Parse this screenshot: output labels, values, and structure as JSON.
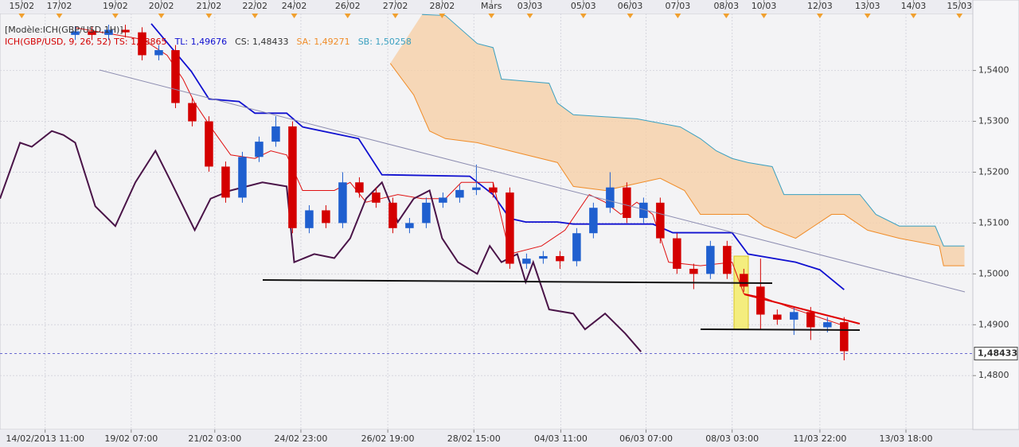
{
  "chart_data": {
    "type": "candlestick",
    "legend": [
      {
        "text": "[Modèle:ICH(GBP/USD,1H)]",
        "color": "#333333"
      },
      {
        "text": "ICH(GBP/USD, 9, 26, 52) TS: 1,48865",
        "color": "#d40000"
      },
      {
        "text": "TL: 1,49676",
        "color": "#1010d0"
      },
      {
        "text": "CS: 1,48433",
        "color": "#333333"
      },
      {
        "text": "SA: 1,49271",
        "color": "#f08c28"
      },
      {
        "text": "SB: 1,50258",
        "color": "#3aa0c0"
      }
    ],
    "xlim": [
      0,
      116.4
    ],
    "ylim": [
      1.4694,
      1.5512
    ],
    "grid": true,
    "yticks": [
      {
        "value": 1.48,
        "label": "1,4800"
      },
      {
        "value": 1.49,
        "label": "1,4900"
      },
      {
        "value": 1.5,
        "label": "1,5000"
      },
      {
        "value": 1.51,
        "label": "1,5100"
      },
      {
        "value": 1.52,
        "label": "1,5200"
      },
      {
        "value": 1.53,
        "label": "1,5300"
      },
      {
        "value": 1.54,
        "label": "1,5400"
      }
    ],
    "xticks": [
      {
        "value": 5.4,
        "label": "14/02/2013 11:00"
      },
      {
        "value": 15.7,
        "label": "19/02 07:00"
      },
      {
        "value": 25.7,
        "label": "21/02 03:00"
      },
      {
        "value": 36,
        "label": "24/02 23:00"
      },
      {
        "value": 46.4,
        "label": "26/02 19:00"
      },
      {
        "value": 56.7,
        "label": "28/02 15:00"
      },
      {
        "value": 67.1,
        "label": "04/03 11:00"
      },
      {
        "value": 77.3,
        "label": "06/03 07:00"
      },
      {
        "value": 87.6,
        "label": "08/03 03:00"
      },
      {
        "value": 98.1,
        "label": "11/03 22:00"
      },
      {
        "value": 108.4,
        "label": "13/03 18:00"
      }
    ],
    "x2ticks": [
      {
        "value": 2.6,
        "label": "15/02"
      },
      {
        "value": 7.1,
        "label": "17/02"
      },
      {
        "value": 13.8,
        "label": "19/02"
      },
      {
        "value": 19.3,
        "label": "20/02"
      },
      {
        "value": 25,
        "label": "21/02"
      },
      {
        "value": 30.5,
        "label": "22/02"
      },
      {
        "value": 35.2,
        "label": "24/02"
      },
      {
        "value": 41.6,
        "label": "26/02"
      },
      {
        "value": 47.3,
        "label": "27/02"
      },
      {
        "value": 52.9,
        "label": "28/02"
      },
      {
        "value": 58.8,
        "label": "Mars"
      },
      {
        "value": 63.4,
        "label": "03/03"
      },
      {
        "value": 69.8,
        "label": "05/03"
      },
      {
        "value": 75.4,
        "label": "06/03"
      },
      {
        "value": 81.1,
        "label": "07/03"
      },
      {
        "value": 86.9,
        "label": "08/03"
      },
      {
        "value": 91.4,
        "label": "10/03"
      },
      {
        "value": 98.1,
        "label": "12/03"
      },
      {
        "value": 103.8,
        "label": "13/03"
      },
      {
        "value": 109.3,
        "label": "14/03"
      },
      {
        "value": 114.8,
        "label": "15/03"
      }
    ],
    "last_price": {
      "value": 1.48433,
      "label": "1,48433"
    },
    "candles": {
      "up_color": "#1f5fcf",
      "down_color": "#d40000",
      "x": [
        9,
        11,
        13,
        15,
        17,
        19,
        21,
        23,
        25,
        27,
        29,
        31,
        33,
        35,
        37,
        39,
        41,
        43,
        45,
        47,
        49,
        51,
        53,
        55,
        57,
        59,
        61,
        63,
        65,
        67,
        69,
        71,
        73,
        75,
        77,
        79,
        81,
        83,
        85,
        87,
        89,
        91,
        93,
        95,
        97,
        99,
        101
      ],
      "open": [
        1.547,
        1.5477,
        1.547,
        1.548,
        1.5475,
        1.543,
        1.544,
        1.5336,
        1.53,
        1.5211,
        1.515,
        1.523,
        1.526,
        1.529,
        1.509,
        1.5125,
        1.51,
        1.518,
        1.516,
        1.514,
        1.509,
        1.51,
        1.514,
        1.515,
        1.5165,
        1.517,
        1.516,
        1.502,
        1.503,
        1.5035,
        1.5025,
        1.508,
        1.513,
        1.517,
        1.511,
        1.514,
        1.507,
        1.501,
        1.5,
        1.5055,
        1.5,
        1.4975,
        1.492,
        1.491,
        1.4925,
        1.4895,
        1.4905
      ],
      "high": [
        1.5487,
        1.5487,
        1.549,
        1.549,
        1.5485,
        1.545,
        1.545,
        1.5346,
        1.531,
        1.5221,
        1.524,
        1.527,
        1.531,
        1.53,
        1.5135,
        1.5135,
        1.52,
        1.519,
        1.517,
        1.515,
        1.511,
        1.515,
        1.516,
        1.5175,
        1.5215,
        1.518,
        1.517,
        1.504,
        1.5045,
        1.5045,
        1.509,
        1.514,
        1.52,
        1.518,
        1.515,
        1.515,
        1.508,
        1.502,
        1.5065,
        1.5065,
        1.501,
        1.503,
        1.493,
        1.4935,
        1.4935,
        1.4915,
        1.4915
      ],
      "low": [
        1.546,
        1.546,
        1.546,
        1.5465,
        1.542,
        1.542,
        1.5326,
        1.529,
        1.5201,
        1.514,
        1.514,
        1.522,
        1.525,
        1.508,
        1.508,
        1.509,
        1.509,
        1.515,
        1.513,
        1.508,
        1.508,
        1.509,
        1.513,
        1.514,
        1.5155,
        1.515,
        1.501,
        1.501,
        1.502,
        1.501,
        1.5015,
        1.507,
        1.512,
        1.51,
        1.51,
        1.506,
        1.5,
        1.497,
        1.499,
        1.499,
        1.4965,
        1.489,
        1.49,
        1.488,
        1.487,
        1.4885,
        1.483
      ],
      "close": [
        1.5477,
        1.547,
        1.548,
        1.5475,
        1.543,
        1.544,
        1.5336,
        1.53,
        1.5211,
        1.515,
        1.523,
        1.526,
        1.529,
        1.509,
        1.5125,
        1.51,
        1.518,
        1.516,
        1.514,
        1.509,
        1.51,
        1.514,
        1.515,
        1.5165,
        1.517,
        1.516,
        1.502,
        1.503,
        1.5035,
        1.5025,
        1.508,
        1.513,
        1.517,
        1.511,
        1.514,
        1.507,
        1.501,
        1.5,
        1.5055,
        1.5,
        1.4975,
        1.492,
        1.491,
        1.4925,
        1.4895,
        1.4905,
        1.4848
      ]
    },
    "series": [
      {
        "color": "#1010d0",
        "x": [
          18.1,
          20.5,
          22.9,
          25,
          28.6,
          30.5,
          34.3,
          36.2,
          42.9,
          45.7,
          56.2,
          59,
          61,
          62.9,
          66.7,
          68.6,
          78.1,
          80.5,
          87.6,
          89.5,
          95.2,
          98.1,
          101
        ],
        "values": [
          1.5492,
          1.5445,
          1.5398,
          1.5344,
          1.5339,
          1.5316,
          1.5316,
          1.5289,
          1.5266,
          1.5195,
          1.5192,
          1.5156,
          1.5109,
          1.5102,
          1.5102,
          1.5098,
          1.5098,
          1.5081,
          1.5081,
          1.5039,
          1.5023,
          1.5008,
          1.4969
        ]
      },
      {
        "color": "#e01010",
        "x": [
          9,
          17.1,
          20,
          21.9,
          23.3,
          25.2,
          27.6,
          30.5,
          32.4,
          34.3,
          36.2,
          40,
          41.9,
          43.8,
          47.6,
          50.5,
          53.3,
          55.2,
          59,
          61,
          64.8,
          67.6,
          70.5,
          72.4,
          74.3,
          76.2,
          78.1,
          80,
          83.8,
          87.6,
          89,
          91.4,
          95.2,
          98.1,
          101
        ],
        "values": [
          1.5484,
          1.5461,
          1.543,
          1.5383,
          1.5336,
          1.5289,
          1.5234,
          1.5227,
          1.5242,
          1.5234,
          1.5164,
          1.5164,
          1.518,
          1.5141,
          1.5156,
          1.5148,
          1.5148,
          1.518,
          1.518,
          1.5039,
          1.5055,
          1.5086,
          1.5156,
          1.5141,
          1.5117,
          1.5141,
          1.5117,
          1.5023,
          1.5016,
          1.5023,
          1.4961,
          1.4953,
          1.493,
          1.4914,
          1.4898
        ]
      },
      {
        "color": "#4a1448",
        "x": [
          0,
          2.4,
          3.8,
          6.2,
          7.6,
          9,
          11.4,
          13.8,
          16.2,
          18.6,
          20.5,
          23.3,
          25.2,
          27.6,
          31.4,
          34.3,
          35.2,
          37.6,
          40,
          41.9,
          43.8,
          45.7,
          47.6,
          49.5,
          51.4,
          52.9,
          54.8,
          57.1,
          58.6,
          60,
          61.9,
          62.9,
          63.8,
          65.7,
          68.6,
          70,
          72.4,
          74.8,
          76.7
        ],
        "values": [
          1.5148,
          1.5258,
          1.525,
          1.5281,
          1.5273,
          1.5258,
          1.5133,
          1.5094,
          1.518,
          1.5242,
          1.518,
          1.5086,
          1.5148,
          1.5164,
          1.518,
          1.5172,
          1.5023,
          1.5039,
          1.5031,
          1.507,
          1.5148,
          1.518,
          1.5102,
          1.5148,
          1.5164,
          1.507,
          1.5023,
          1.5,
          1.5055,
          1.5023,
          1.5039,
          1.4984,
          1.5023,
          1.493,
          1.4922,
          1.4891,
          1.4922,
          1.4883,
          1.4847
        ]
      },
      {
        "color": "#f08c28",
        "x": [
          46.7,
          49.5,
          51.4,
          53.3,
          57.1,
          61,
          66.7,
          68.6,
          72.4,
          79,
          81.9,
          83.8,
          89.5,
          91.4,
          95.2,
          99.5,
          101,
          103.8,
          107.6,
          112.4,
          112.9,
          115.4
        ],
        "values": [
          1.5414,
          1.5352,
          1.5281,
          1.5266,
          1.5258,
          1.5242,
          1.5219,
          1.5172,
          1.5164,
          1.5188,
          1.5164,
          1.5117,
          1.5117,
          1.5094,
          1.507,
          1.5117,
          1.5117,
          1.5086,
          1.507,
          1.5055,
          1.5016,
          1.5016
        ]
      },
      {
        "color": "#3aa0c0",
        "x": [
          50.5,
          53.3,
          57.1,
          59,
          60,
          65.7,
          66.7,
          68.6,
          76.2,
          81.4,
          83.8,
          85.7,
          87.6,
          89.5,
          92.4,
          93.8,
          102.9,
          104.8,
          107.6,
          111.9,
          112.9,
          115.4
        ],
        "values": [
          1.551,
          1.5508,
          1.5453,
          1.5445,
          1.5383,
          1.5375,
          1.5336,
          1.5313,
          1.5305,
          1.5289,
          1.5266,
          1.5242,
          1.5227,
          1.5219,
          1.5211,
          1.5156,
          1.5156,
          1.5117,
          1.5094,
          1.5094,
          1.5055,
          1.5055
        ]
      }
    ],
    "cloud_color": "#f6cfa8"
  }
}
